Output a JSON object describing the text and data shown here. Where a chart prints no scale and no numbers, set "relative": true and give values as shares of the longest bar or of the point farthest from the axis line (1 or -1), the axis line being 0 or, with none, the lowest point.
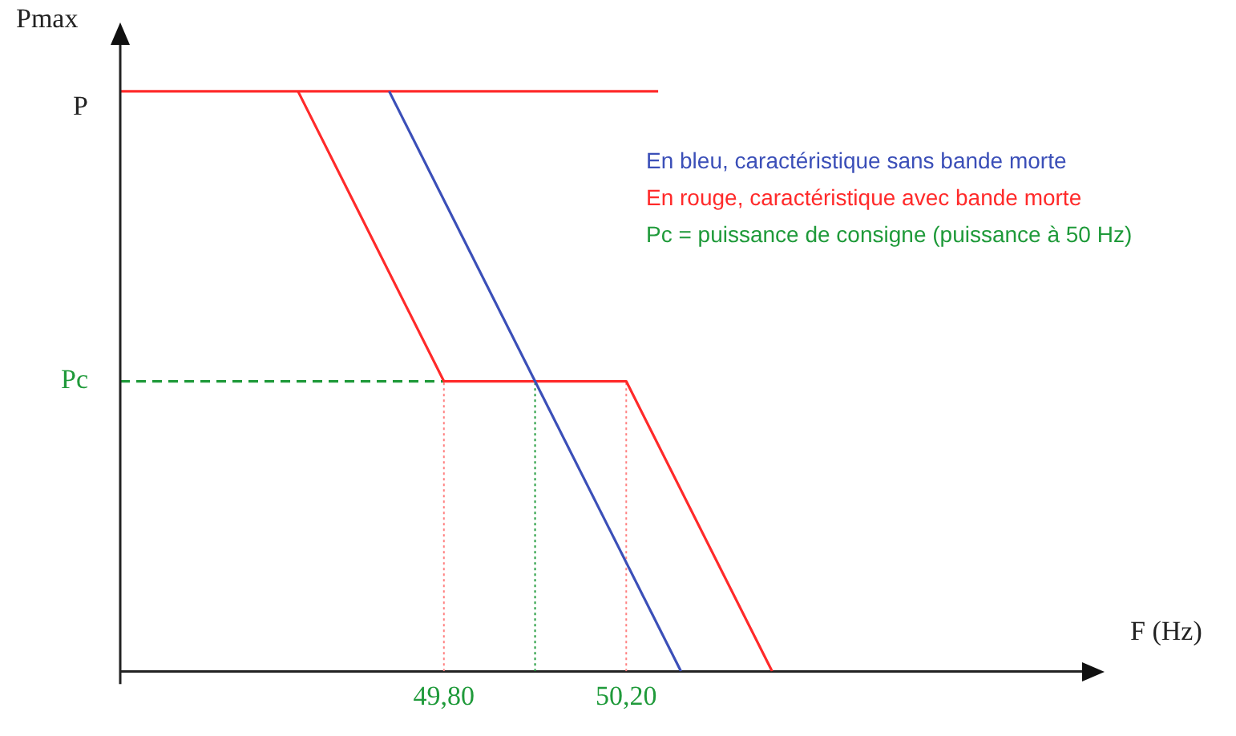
{
  "chart_data": {
    "type": "line",
    "relative": true,
    "xlabel": "F (Hz)",
    "ylabel": "Pmax",
    "xlim": [
      49.09,
      51.2
    ],
    "xticks": [
      {
        "value": 49.8,
        "label": "49,80"
      },
      {
        "value": 50.2,
        "label": "50,20"
      }
    ],
    "grid": false,
    "legend": "top right",
    "marker": "none",
    "series": [
      {
        "name": "En bleu, caractéristique sans bande morte",
        "color": "#3b4fb8",
        "x": [
          49.68,
          50.32
        ],
        "values": [
          1,
          0
        ]
      },
      {
        "name": "En rouge, caractéristique avec bande morte",
        "color": "#ff2a2a",
        "x": [
          49.48,
          49.8,
          50.2,
          50.52
        ],
        "values": [
          1,
          0.5,
          0.5,
          0
        ]
      },
      {
        "color": "#ff2a2a",
        "x": [
          49.09,
          50.27
        ],
        "values": [
          1,
          1
        ]
      },
      {
        "color": "#1f9a3a",
        "x": [
          49.09,
          49.8
        ],
        "values": [
          0.5,
          0.5
        ],
        "line_style": "dashed"
      },
      {
        "color": "#ff8080",
        "x": [
          49.8,
          49.8
        ],
        "values": [
          0,
          0.5
        ],
        "line_style": "dotted"
      },
      {
        "color": "#1f9a3a",
        "x": [
          50,
          50
        ],
        "values": [
          0,
          0.5
        ],
        "line_style": "dotted"
      },
      {
        "color": "#ff8080",
        "x": [
          50.2,
          50.2
        ],
        "values": [
          0,
          0.5
        ],
        "line_style": "dotted"
      }
    ],
    "annotations": [
      "P",
      "Pc",
      "Pc = puissance de consigne (puissance à 50 Hz)"
    ]
  }
}
